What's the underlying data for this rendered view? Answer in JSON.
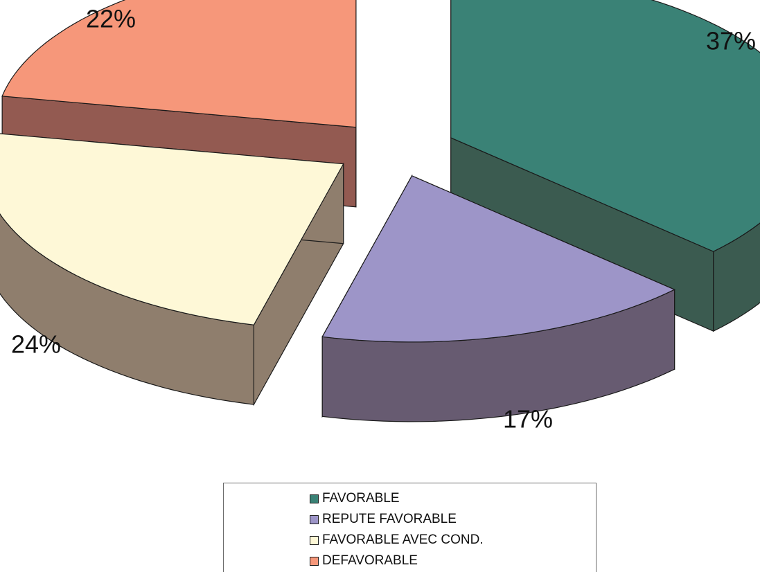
{
  "chart_data": {
    "type": "pie",
    "style": "3d-exploded",
    "legend_position": "bottom",
    "slices": [
      {
        "name": "FAVORABLE",
        "value": 37,
        "label": "37%",
        "color": "#3a8276",
        "side_color": "#3b5b50"
      },
      {
        "name": "REPUTE FAVORABLE",
        "value": 17,
        "label": "17%",
        "color": "#9d95c8",
        "side_color": "#675b71"
      },
      {
        "name": "FAVORABLE AVEC COND.",
        "value": 24,
        "label": "24%",
        "color": "#fef8d7",
        "side_color": "#8f7e6d"
      },
      {
        "name": "DEFAVORABLE",
        "value": 22,
        "label": "22%",
        "color": "#f6977a",
        "side_color": "#935a51"
      }
    ]
  }
}
